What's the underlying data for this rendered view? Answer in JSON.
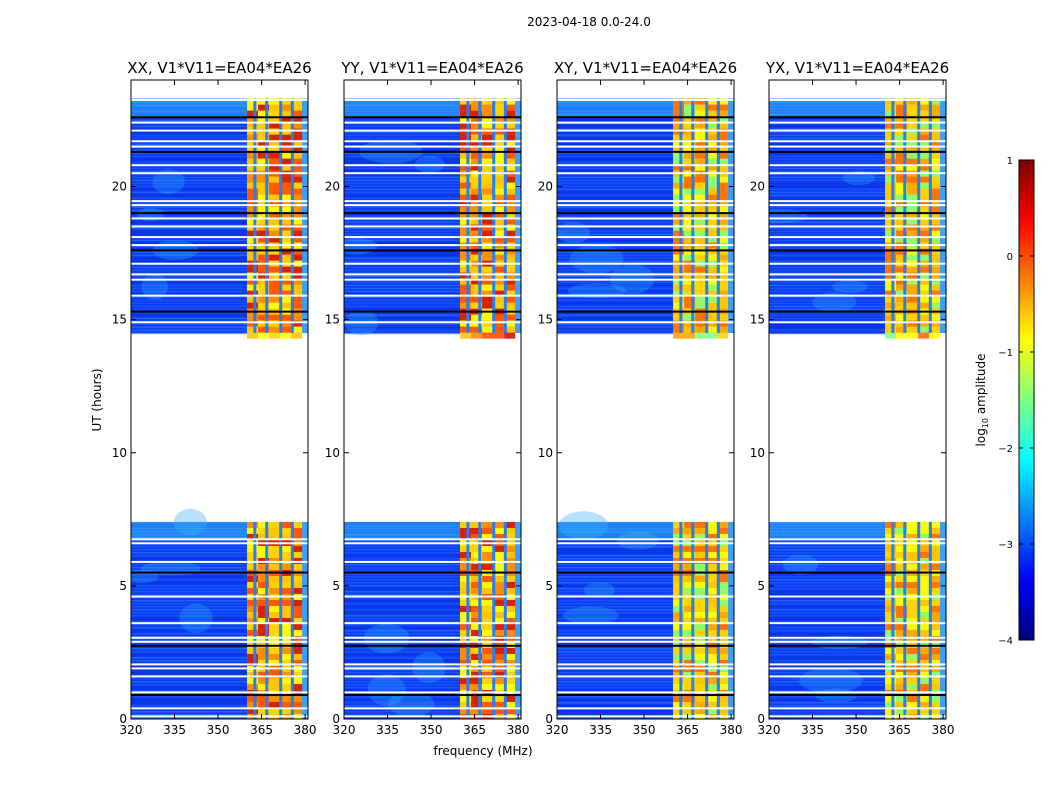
{
  "figure": {
    "suptitle": "2023-04-18 0.0-24.0",
    "ylabel": "UT (hours)",
    "xlabel": "frequency (MHz)"
  },
  "chart_data": {
    "type": "heatmap",
    "x_range": [
      320,
      381
    ],
    "y_range": [
      0,
      24
    ],
    "x_ticks": [
      320,
      335,
      350,
      365,
      380
    ],
    "y_ticks": [
      0,
      5,
      10,
      15,
      20
    ],
    "panels": [
      {
        "title": "XX, V1*V11=EA04*EA26"
      },
      {
        "title": "YY, V1*V11=EA04*EA26"
      },
      {
        "title": "XY, V1*V11=EA04*EA26"
      },
      {
        "title": "YX, V1*V11=EA04*EA26"
      }
    ],
    "data_time_ranges_hours": [
      [
        0,
        7.4
      ],
      [
        14.5,
        23.3
      ]
    ],
    "gap_hours": [
      7.4,
      14.5
    ],
    "rfi_band_mhz": [
      360,
      379
    ],
    "rfi_channel_gaps_mhz": [
      362.7,
      366.8,
      371.6,
      375.6
    ],
    "flagged_rows_hours": [
      0.1,
      0.4,
      0.9,
      1.0,
      1.6,
      1.9,
      2.05,
      2.75,
      2.9,
      3.05,
      3.6,
      4.6,
      5.5,
      5.9,
      6.6,
      6.75,
      14.9,
      15.3,
      15.9,
      16.5,
      16.7,
      17.1,
      17.6,
      17.8,
      18.1,
      18.5,
      18.8,
      19.0,
      19.3,
      19.45,
      20.5,
      20.8,
      21.3,
      21.5,
      21.7,
      22.1,
      22.4,
      22.6,
      23.25
    ],
    "colorbar": {
      "label": "log10 amplitude",
      "label_main": "log",
      "label_sub": "10",
      "label_rest": " amplitude",
      "range": [
        -4,
        1
      ],
      "ticks": [
        "1",
        "0",
        "−1",
        "−2",
        "−3",
        "−4"
      ],
      "tick_values": [
        1,
        0,
        -1,
        -2,
        -3,
        -4
      ],
      "colormap": "jet",
      "colormap_stops": [
        "#00007f",
        "#0000ff",
        "#007fff",
        "#00ffff",
        "#7fff7f",
        "#ffff00",
        "#ff7f00",
        "#ff0000",
        "#7f0000"
      ]
    }
  }
}
